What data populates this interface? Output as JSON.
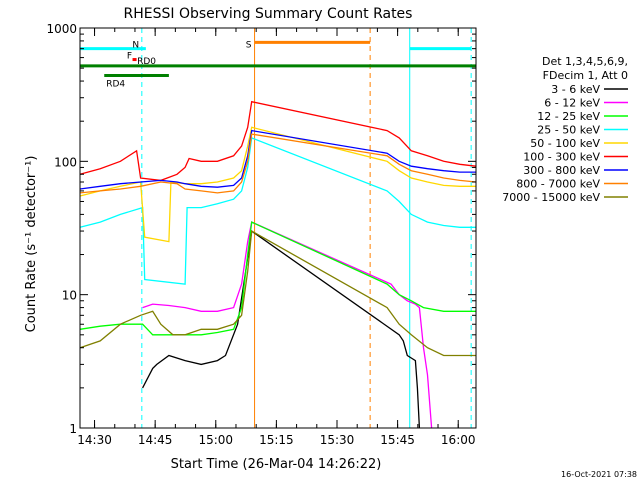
{
  "chart_data": {
    "type": "line",
    "title": "RHESSI Observing Summary Count Rates",
    "xlabel": "Start Time (26-Mar-04 14:26:22)",
    "ylabel": "Count Rate (s⁻¹ detector⁻¹)",
    "yscale": "log",
    "ylim": [
      1,
      1000
    ],
    "xlim": [
      "14:26",
      "16:04"
    ],
    "x_unit": "minutes since 14:26:22",
    "x_range_minutes": [
      0,
      98
    ],
    "x_ticks": [
      {
        "label": "14:30",
        "t": 3.6
      },
      {
        "label": "14:45",
        "t": 18.6
      },
      {
        "label": "15:00",
        "t": 33.6
      },
      {
        "label": "15:15",
        "t": 48.6
      },
      {
        "label": "15:30",
        "t": 63.6
      },
      {
        "label": "15:45",
        "t": 78.6
      },
      {
        "label": "16:00",
        "t": 93.6
      }
    ],
    "y_ticks": [
      {
        "label": "1",
        "v": 1
      },
      {
        "label": "10",
        "v": 10
      },
      {
        "label": "100",
        "v": 100
      },
      {
        "label": "1000",
        "v": 1000
      }
    ],
    "legend_header": [
      "Det 1,3,4,5,6,9,",
      "FDecim 1, Att 0"
    ],
    "series": [
      {
        "name": "3 - 6 keV",
        "color": "#000000",
        "points": [
          [
            15.5,
            2
          ],
          [
            18,
            2.8
          ],
          [
            19,
            3
          ],
          [
            22,
            3.5
          ],
          [
            26,
            3.2
          ],
          [
            30,
            3
          ],
          [
            34,
            3.2
          ],
          [
            36,
            3.5
          ],
          [
            39,
            6
          ],
          [
            41,
            15
          ],
          [
            42.5,
            30
          ],
          [
            79,
            5
          ],
          [
            80,
            4.5
          ],
          [
            81,
            3.5
          ],
          [
            83,
            3.2
          ],
          [
            83.5,
            2
          ],
          [
            84,
            1
          ]
        ]
      },
      {
        "name": "6 - 12 keV",
        "color": "#ff00ff",
        "points": [
          [
            15.5,
            8
          ],
          [
            18,
            8.5
          ],
          [
            22,
            8.3
          ],
          [
            26,
            8
          ],
          [
            30,
            7.5
          ],
          [
            34,
            7.5
          ],
          [
            38,
            8
          ],
          [
            40,
            12
          ],
          [
            41.5,
            25
          ],
          [
            42.5,
            35
          ],
          [
            77,
            12
          ],
          [
            79,
            10
          ],
          [
            81,
            9
          ],
          [
            83,
            8.5
          ],
          [
            84,
            8
          ],
          [
            85,
            4
          ],
          [
            86,
            2.5
          ],
          [
            87,
            1
          ]
        ]
      },
      {
        "name": "12 - 25 keV",
        "color": "#00ff00",
        "points": [
          [
            0,
            5.5
          ],
          [
            5,
            5.8
          ],
          [
            10,
            6
          ],
          [
            15.5,
            6
          ],
          [
            18,
            5
          ],
          [
            26,
            5
          ],
          [
            30,
            5
          ],
          [
            34,
            5.2
          ],
          [
            38,
            5.5
          ],
          [
            40,
            8
          ],
          [
            41.5,
            20
          ],
          [
            42.5,
            35
          ],
          [
            76,
            12
          ],
          [
            79,
            10
          ],
          [
            82,
            9
          ],
          [
            85,
            8
          ],
          [
            90,
            7.5
          ],
          [
            98,
            7.5
          ]
        ]
      },
      {
        "name": "25 - 50 keV",
        "color": "#00ffff",
        "points": [
          [
            0,
            32
          ],
          [
            5,
            35
          ],
          [
            10,
            40
          ],
          [
            15.5,
            45
          ],
          [
            16,
            13
          ],
          [
            26,
            12
          ],
          [
            26.5,
            45
          ],
          [
            30,
            45
          ],
          [
            34,
            48
          ],
          [
            38,
            52
          ],
          [
            40,
            60
          ],
          [
            41.5,
            90
          ],
          [
            42.5,
            150
          ],
          [
            76,
            60
          ],
          [
            79,
            50
          ],
          [
            82,
            40
          ],
          [
            86,
            35
          ],
          [
            90,
            33
          ],
          [
            94,
            32
          ],
          [
            98,
            32
          ]
        ]
      },
      {
        "name": "50 - 100 keV",
        "color": "#ffd700",
        "points": [
          [
            0,
            55
          ],
          [
            5,
            60
          ],
          [
            10,
            65
          ],
          [
            15,
            70
          ],
          [
            16,
            27
          ],
          [
            22,
            25
          ],
          [
            22.5,
            70
          ],
          [
            26,
            68
          ],
          [
            30,
            68
          ],
          [
            34,
            70
          ],
          [
            38,
            75
          ],
          [
            40,
            85
          ],
          [
            41.5,
            130
          ],
          [
            42.5,
            180
          ],
          [
            76,
            100
          ],
          [
            79,
            85
          ],
          [
            82,
            75
          ],
          [
            86,
            70
          ],
          [
            90,
            66
          ],
          [
            94,
            65
          ],
          [
            98,
            65
          ]
        ]
      },
      {
        "name": "100 - 300 keV",
        "color": "#ff0000",
        "points": [
          [
            0,
            80
          ],
          [
            5,
            88
          ],
          [
            10,
            100
          ],
          [
            14,
            120
          ],
          [
            15,
            75
          ],
          [
            20,
            72
          ],
          [
            24,
            80
          ],
          [
            26,
            90
          ],
          [
            27,
            105
          ],
          [
            30,
            100
          ],
          [
            34,
            100
          ],
          [
            38,
            110
          ],
          [
            40,
            130
          ],
          [
            41.5,
            180
          ],
          [
            42.5,
            280
          ],
          [
            76,
            170
          ],
          [
            79,
            150
          ],
          [
            82,
            120
          ],
          [
            86,
            110
          ],
          [
            90,
            100
          ],
          [
            94,
            95
          ],
          [
            98,
            92
          ]
        ]
      },
      {
        "name": "300 - 800 keV",
        "color": "#0000ff",
        "points": [
          [
            0,
            62
          ],
          [
            5,
            65
          ],
          [
            10,
            68
          ],
          [
            15,
            70
          ],
          [
            20,
            72
          ],
          [
            24,
            70
          ],
          [
            26,
            68
          ],
          [
            30,
            65
          ],
          [
            34,
            64
          ],
          [
            38,
            66
          ],
          [
            40,
            75
          ],
          [
            41.5,
            110
          ],
          [
            42.5,
            170
          ],
          [
            76,
            115
          ],
          [
            79,
            100
          ],
          [
            82,
            92
          ],
          [
            86,
            88
          ],
          [
            90,
            85
          ],
          [
            94,
            83
          ],
          [
            98,
            83
          ]
        ]
      },
      {
        "name": "800 - 7000 keV",
        "color": "#ff8000",
        "points": [
          [
            0,
            58
          ],
          [
            5,
            60
          ],
          [
            10,
            62
          ],
          [
            15,
            65
          ],
          [
            20,
            70
          ],
          [
            24,
            68
          ],
          [
            26,
            62
          ],
          [
            30,
            60
          ],
          [
            34,
            58
          ],
          [
            38,
            60
          ],
          [
            40,
            70
          ],
          [
            41.5,
            100
          ],
          [
            42.5,
            160
          ],
          [
            76,
            110
          ],
          [
            79,
            95
          ],
          [
            82,
            85
          ],
          [
            86,
            80
          ],
          [
            90,
            75
          ],
          [
            94,
            72
          ],
          [
            98,
            70
          ]
        ]
      },
      {
        "name": "7000 - 15000 keV",
        "color": "#808000",
        "points": [
          [
            0,
            4
          ],
          [
            5,
            4.5
          ],
          [
            10,
            6
          ],
          [
            15,
            7
          ],
          [
            18,
            7.5
          ],
          [
            20,
            6
          ],
          [
            23,
            5
          ],
          [
            26,
            5
          ],
          [
            30,
            5.5
          ],
          [
            34,
            5.5
          ],
          [
            38,
            6
          ],
          [
            40,
            7
          ],
          [
            41.5,
            15
          ],
          [
            42.5,
            30
          ],
          [
            76,
            8
          ],
          [
            79,
            6
          ],
          [
            82,
            5
          ],
          [
            86,
            4
          ],
          [
            90,
            3.5
          ],
          [
            94,
            3.5
          ],
          [
            98,
            3.5
          ]
        ]
      }
    ],
    "state_bars": [
      {
        "label": "",
        "color": "#00ffff",
        "value": 700,
        "t_start": 0,
        "t_end": 12
      },
      {
        "label": "N",
        "color": "#00ffff",
        "value": 700,
        "t_start": 12,
        "t_end": 16.3
      },
      {
        "label": "F",
        "color": "#ff0000",
        "value": 580,
        "t_start": 13,
        "t_end": 14
      },
      {
        "label": "RD0",
        "color": "#008000",
        "value": 520,
        "t_start": 0,
        "t_end": 98
      },
      {
        "label": "RD4",
        "color": "#008000",
        "value": 440,
        "t_start": 6,
        "t_end": 22
      },
      {
        "label": "S",
        "color": "#ff8000",
        "value": 780,
        "t_start": 43.2,
        "t_end": 71.8
      },
      {
        "label": "",
        "color": "#00ffff",
        "value": 700,
        "t_start": 81.6,
        "t_end": 96.8
      }
    ],
    "vertical_markers": [
      {
        "t": 15.3,
        "color": "#00ffff",
        "style": "dashed"
      },
      {
        "t": 43.2,
        "color": "#ff8000",
        "style": "solid"
      },
      {
        "t": 71.8,
        "color": "#ff8000",
        "style": "dashed"
      },
      {
        "t": 81.6,
        "color": "#00ffff",
        "style": "solid"
      },
      {
        "t": 96.8,
        "color": "#00ffff",
        "style": "dashed"
      }
    ],
    "footer_timestamp": "16-Oct-2021 07:38"
  }
}
